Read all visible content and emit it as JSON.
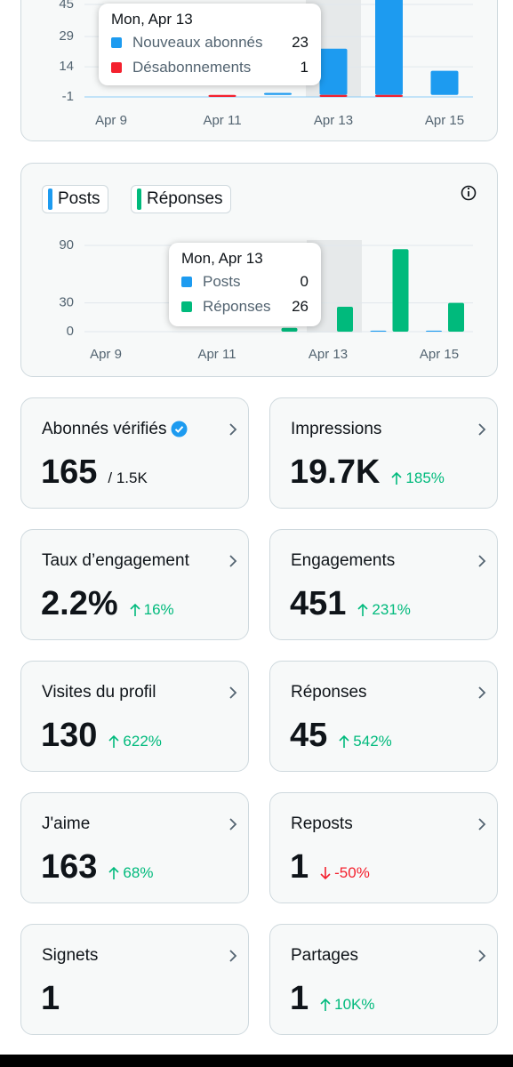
{
  "followers_chart": {
    "type": "bar",
    "categories": [
      "Apr 9",
      null,
      "Apr 11",
      null,
      "Apr 13",
      null,
      "Apr 15"
    ],
    "series": [
      {
        "name": "Nouveaux abonnés",
        "color": "#1d9bf0",
        "values": [
          0,
          0,
          0,
          1,
          23,
          50,
          12
        ]
      },
      {
        "name": "Désabonnements",
        "color": "#f4212e",
        "values": [
          0,
          0,
          1,
          0,
          1,
          1,
          0
        ]
      }
    ],
    "ylim": [
      -1,
      45
    ],
    "yticks": [
      -1,
      14,
      29,
      45
    ],
    "grid": true,
    "tooltip": {
      "title": "Mon, Apr 13"
    }
  },
  "posts_chart": {
    "type": "bar",
    "categories": [
      "Apr 9",
      null,
      "Apr 11",
      null,
      "Apr 13",
      null,
      "Apr 15"
    ],
    "series": [
      {
        "name": "Posts",
        "color": "#1d9bf0",
        "values": [
          0,
          0,
          0,
          0,
          0,
          1,
          1
        ]
      },
      {
        "name": "Réponses",
        "color": "#00ba7c",
        "values": [
          0,
          0,
          0,
          4,
          26,
          86,
          30
        ]
      }
    ],
    "ylim": [
      0,
      90
    ],
    "yticks": [
      0,
      30,
      90
    ],
    "grid": true,
    "tooltip": {
      "title": "Mon, Apr 13"
    }
  },
  "cards": [
    {
      "label": "Abonnés vérifiés",
      "value": "165",
      "total": "/ 1.5K"
    },
    {
      "label": "Impressions",
      "value": "19.7K",
      "change": "185%",
      "trend": "up"
    },
    {
      "label": "Taux d’engagement",
      "value": "2.2%",
      "change": "16%",
      "trend": "up"
    },
    {
      "label": "Engagements",
      "value": "451",
      "change": "231%",
      "trend": "up"
    },
    {
      "label": "Visites du profil",
      "value": "130",
      "change": "622%",
      "trend": "up"
    },
    {
      "label": "Réponses",
      "value": "45",
      "change": "542%",
      "trend": "up"
    },
    {
      "label": "J'aime",
      "value": "163",
      "change": "68%",
      "trend": "up"
    },
    {
      "label": "Reposts",
      "value": "1",
      "change": "-50%",
      "trend": "down"
    },
    {
      "label": "Signets",
      "value": "1"
    },
    {
      "label": "Partages",
      "value": "1",
      "change": "10K%",
      "trend": "up"
    }
  ]
}
